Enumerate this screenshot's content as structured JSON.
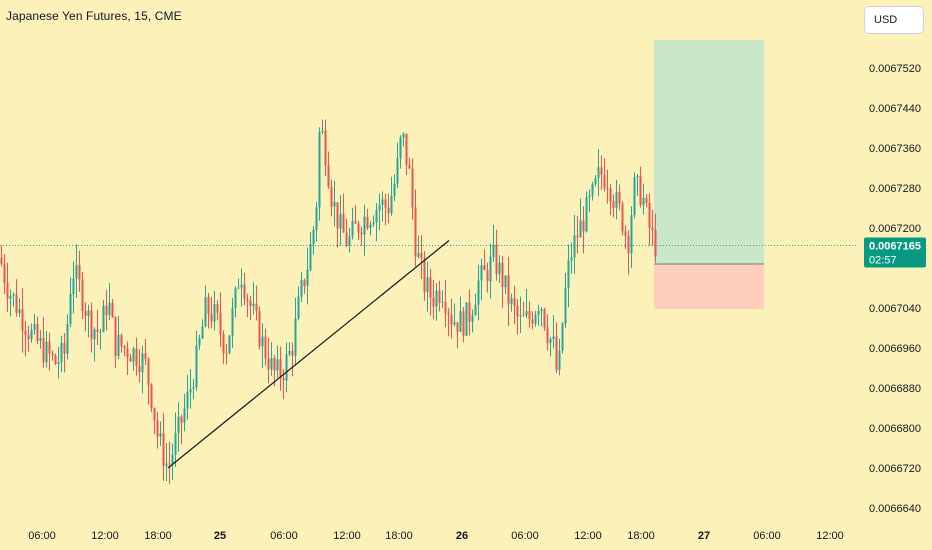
{
  "header": {
    "title": "Japanese Yen Futures, 15, CME",
    "currency_button": "USD"
  },
  "colors": {
    "background": "#fbf1b9",
    "up": "#26a69a",
    "down": "#ef5350",
    "target_zone": "#c8e6c9",
    "stop_zone": "#ffccbc",
    "price_line": "#26a69a",
    "price_badge": "#089981"
  },
  "price_badge": {
    "price": "0.0067165",
    "countdown": "02:57"
  },
  "chart_data": {
    "type": "candlestick",
    "symbol": "Japanese Yen Futures",
    "interval": "15",
    "exchange": "CME",
    "y_axis": {
      "labels": [
        "0.0067520",
        "0.0067440",
        "0.0067360",
        "0.0067280",
        "0.0067200",
        "0.0067040",
        "0.0066960",
        "0.0066880",
        "0.0066800",
        "0.0066720",
        "0.0066640"
      ],
      "range": [
        0.006662,
        0.006756
      ]
    },
    "x_axis": {
      "labels": [
        {
          "text": "06:00",
          "bold": false
        },
        {
          "text": "12:00",
          "bold": false
        },
        {
          "text": "18:00",
          "bold": false
        },
        {
          "text": "25",
          "bold": true
        },
        {
          "text": "06:00",
          "bold": false
        },
        {
          "text": "12:00",
          "bold": false
        },
        {
          "text": "18:00",
          "bold": false
        },
        {
          "text": "26",
          "bold": true
        },
        {
          "text": "06:00",
          "bold": false
        },
        {
          "text": "12:00",
          "bold": false
        },
        {
          "text": "18:00",
          "bold": false
        },
        {
          "text": "27",
          "bold": true
        },
        {
          "text": "06:00",
          "bold": false
        },
        {
          "text": "12:00",
          "bold": false
        }
      ]
    },
    "price_path": [
      [
        0,
        0.006714
      ],
      [
        8,
        0.006708
      ],
      [
        18,
        0.006704
      ],
      [
        30,
        0.006699
      ],
      [
        42,
        0.006696
      ],
      [
        55,
        0.006693
      ],
      [
        65,
        0.006695
      ],
      [
        72,
        0.006712
      ],
      [
        80,
        0.006708
      ],
      [
        90,
        0.006701
      ],
      [
        100,
        0.006699
      ],
      [
        108,
        0.006706
      ],
      [
        115,
        0.006697
      ],
      [
        125,
        0.006696
      ],
      [
        135,
        0.006695
      ],
      [
        145,
        0.006693
      ],
      [
        152,
        0.006686
      ],
      [
        158,
        0.006678
      ],
      [
        168,
        0.006672
      ],
      [
        178,
        0.006679
      ],
      [
        188,
        0.006686
      ],
      [
        196,
        0.006693
      ],
      [
        206,
        0.006704
      ],
      [
        216,
        0.006702
      ],
      [
        226,
        0.006696
      ],
      [
        236,
        0.006706
      ],
      [
        240,
        0.006712
      ],
      [
        248,
        0.006706
      ],
      [
        256,
        0.006701
      ],
      [
        264,
        0.006696
      ],
      [
        274,
        0.006691
      ],
      [
        282,
        0.006691
      ],
      [
        292,
        0.006696
      ],
      [
        300,
        0.006706
      ],
      [
        308,
        0.006713
      ],
      [
        316,
        0.006723
      ],
      [
        320,
        0.006741
      ],
      [
        326,
        0.006735
      ],
      [
        332,
        0.006726
      ],
      [
        340,
        0.00672
      ],
      [
        348,
        0.006717
      ],
      [
        356,
        0.00672
      ],
      [
        364,
        0.006722
      ],
      [
        372,
        0.006723
      ],
      [
        380,
        0.006725
      ],
      [
        388,
        0.006724
      ],
      [
        396,
        0.00673
      ],
      [
        402,
        0.006739
      ],
      [
        410,
        0.00673
      ],
      [
        416,
        0.006716
      ],
      [
        424,
        0.006709
      ],
      [
        432,
        0.006706
      ],
      [
        442,
        0.006708
      ],
      [
        452,
        0.006702
      ],
      [
        462,
        0.006701
      ],
      [
        470,
        0.006703
      ],
      [
        478,
        0.006709
      ],
      [
        486,
        0.006711
      ],
      [
        494,
        0.006714
      ],
      [
        502,
        0.00671
      ],
      [
        510,
        0.006705
      ],
      [
        520,
        0.006701
      ],
      [
        530,
        0.006702
      ],
      [
        540,
        0.006706
      ],
      [
        548,
        0.006699
      ],
      [
        554,
        0.006696
      ],
      [
        558,
        0.006689
      ],
      [
        564,
        0.006705
      ],
      [
        570,
        0.006714
      ],
      [
        576,
        0.006718
      ],
      [
        584,
        0.006722
      ],
      [
        592,
        0.006726
      ],
      [
        600,
        0.006731
      ],
      [
        608,
        0.00673
      ],
      [
        614,
        0.006726
      ],
      [
        622,
        0.006722
      ],
      [
        628,
        0.006717
      ],
      [
        634,
        0.006728
      ],
      [
        642,
        0.006727
      ],
      [
        648,
        0.006721
      ],
      [
        654,
        0.006717
      ],
      [
        657,
        0.0067165
      ]
    ],
    "trendline": {
      "from": [
        168,
        0.006672
      ],
      "to": [
        449,
        0.0067175
      ]
    },
    "current_price": 0.0067165,
    "position": {
      "type": "long",
      "entry": 0.0067128,
      "target": 0.0067576,
      "stop": 0.0067038
    }
  }
}
